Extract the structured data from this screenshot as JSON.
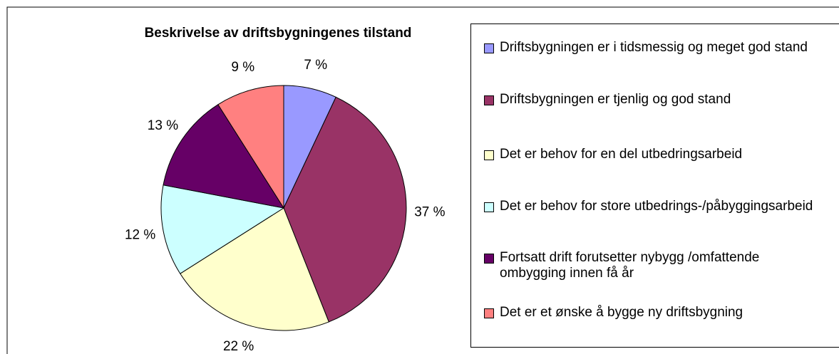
{
  "chart_data": {
    "type": "pie",
    "title": "Beskrivelse av driftsbygningenes tilstand",
    "categories": [
      "Driftsbygningen er i tidsmessig og meget god stand",
      "Driftsbygningen er tjenlig og god stand",
      "Det er behov for en del utbedringsarbeid",
      "Det er behov for store utbedrings-/påbyggingsarbeid",
      "Fortsatt drift forutsetter nybygg /omfattende ombygging innen få år",
      "Det er et ønske å bygge ny driftsbygning"
    ],
    "values": [
      7,
      37,
      22,
      12,
      13,
      9
    ],
    "value_labels": [
      "7 %",
      "37 %",
      "22 %",
      "12 %",
      "13 %",
      "9 %"
    ],
    "colors": [
      "#9999ff",
      "#993366",
      "#ffffcc",
      "#ccffff",
      "#660066",
      "#ff8080"
    ],
    "legend": "right"
  }
}
